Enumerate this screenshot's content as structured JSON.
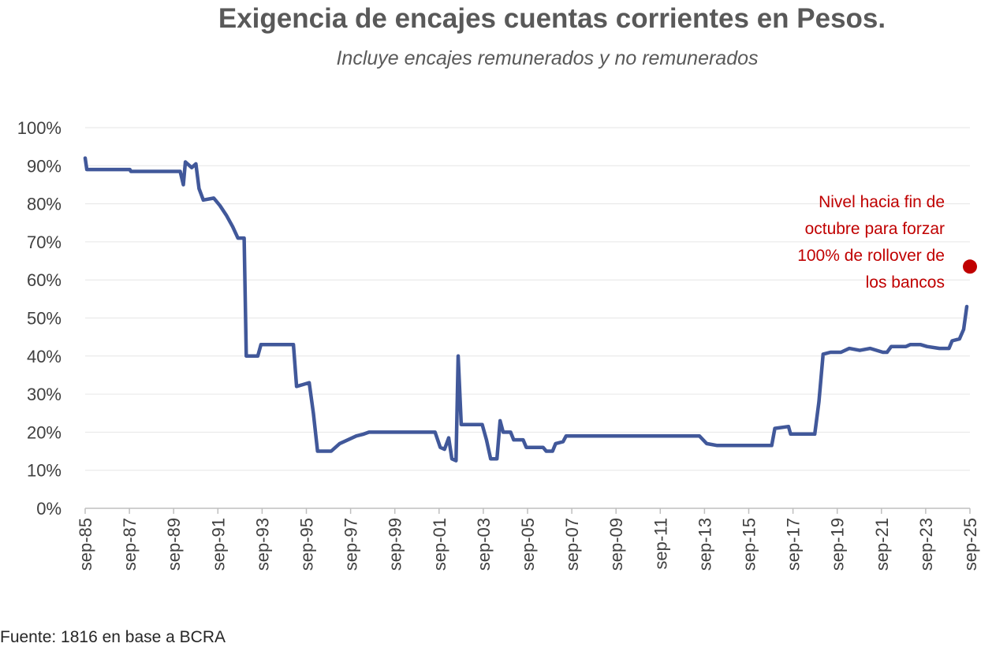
{
  "title": "Exigencia de encajes cuentas corrientes en Pesos.",
  "subtitle": "Incluye encajes remunerados y no remunerados",
  "source": "Fuente: 1816 en base a BCRA",
  "colors": {
    "line": "#41589a",
    "marker": "#c00000",
    "text": "#595959",
    "grid": "#e6e6e6"
  },
  "chart_data": {
    "type": "line",
    "title": "Exigencia de encajes cuentas corrientes en Pesos.",
    "subtitle": "Incluye encajes remunerados y no remunerados",
    "xlabel": "",
    "ylabel": "",
    "ylim": [
      0,
      100
    ],
    "yticks": [
      "0%",
      "10%",
      "20%",
      "30%",
      "40%",
      "50%",
      "60%",
      "70%",
      "80%",
      "90%",
      "100%"
    ],
    "xticks": [
      "sep-85",
      "sep-87",
      "sep-89",
      "sep-91",
      "sep-93",
      "sep-95",
      "sep-97",
      "sep-99",
      "sep-01",
      "sep-03",
      "sep-05",
      "sep-07",
      "sep-09",
      "sep-11",
      "sep-13",
      "sep-15",
      "sep-17",
      "sep-19",
      "sep-21",
      "sep-23",
      "sep-25"
    ],
    "grid": true,
    "series": [
      {
        "values": [
          [
            1985.67,
            92
          ],
          [
            1985.75,
            89
          ],
          [
            1987.8,
            89
          ],
          [
            1987.85,
            88.5
          ],
          [
            1990.2,
            88.5
          ],
          [
            1990.35,
            85
          ],
          [
            1990.45,
            91
          ],
          [
            1990.75,
            89.5
          ],
          [
            1990.95,
            90.5
          ],
          [
            1991.1,
            84
          ],
          [
            1991.3,
            81
          ],
          [
            1991.8,
            81.5
          ],
          [
            1992.1,
            79.5
          ],
          [
            1992.4,
            77
          ],
          [
            1992.7,
            74
          ],
          [
            1992.95,
            71
          ],
          [
            1993.25,
            71
          ],
          [
            1993.35,
            40
          ],
          [
            1993.9,
            40
          ],
          [
            1994.05,
            43
          ],
          [
            1995.6,
            43
          ],
          [
            1995.75,
            32
          ],
          [
            1996.35,
            33
          ],
          [
            1996.55,
            25
          ],
          [
            1996.75,
            15
          ],
          [
            1997.4,
            15
          ],
          [
            1997.8,
            17
          ],
          [
            1998.2,
            18
          ],
          [
            1998.6,
            19
          ],
          [
            1998.95,
            19.5
          ],
          [
            1999.2,
            20
          ],
          [
            2002.35,
            20
          ],
          [
            2002.6,
            16
          ],
          [
            2002.8,
            15.5
          ],
          [
            2003.0,
            18.5
          ],
          [
            2003.15,
            13
          ],
          [
            2003.35,
            12.5
          ],
          [
            2003.45,
            40
          ],
          [
            2003.6,
            22
          ],
          [
            2004.6,
            22
          ],
          [
            2004.8,
            18
          ],
          [
            2005.0,
            13
          ],
          [
            2005.3,
            13
          ],
          [
            2005.45,
            23
          ],
          [
            2005.6,
            20
          ],
          [
            2005.95,
            20
          ],
          [
            2006.1,
            18
          ],
          [
            2006.55,
            18
          ],
          [
            2006.7,
            16
          ],
          [
            2007.5,
            16
          ],
          [
            2007.65,
            15
          ],
          [
            2007.95,
            15
          ],
          [
            2008.1,
            17
          ],
          [
            2008.45,
            17.5
          ],
          [
            2008.6,
            19
          ],
          [
            2014.95,
            19
          ],
          [
            2015.3,
            17
          ],
          [
            2015.8,
            16.5
          ],
          [
            2016.4,
            16.5
          ],
          [
            2017.5,
            16.5
          ],
          [
            2018.4,
            16.5
          ],
          [
            2018.55,
            21
          ],
          [
            2019.2,
            21.5
          ],
          [
            2019.3,
            19.5
          ],
          [
            2020.45,
            19.5
          ],
          [
            2020.65,
            28
          ],
          [
            2020.85,
            40.5
          ],
          [
            2021.2,
            41
          ],
          [
            2021.7,
            41
          ],
          [
            2022.1,
            42
          ],
          [
            2022.6,
            41.5
          ],
          [
            2023.1,
            42
          ],
          [
            2023.7,
            41
          ],
          [
            2023.9,
            41
          ],
          [
            2024.1,
            42.5
          ],
          [
            2024.8,
            42.5
          ],
          [
            2025.0,
            43
          ],
          [
            2025.5,
            43
          ],
          [
            2025.8,
            42.5
          ],
          [
            2026.4,
            42
          ],
          [
            2026.85,
            42
          ],
          [
            2027.0,
            44
          ],
          [
            2027.35,
            44.5
          ],
          [
            2027.55,
            47
          ],
          [
            2027.7,
            53
          ]
        ]
      }
    ],
    "point": {
      "x": 2027.85,
      "y": 63.5
    },
    "annotation": [
      "Nivel hacia fin de",
      "octubre para forzar",
      "100% de rollover de",
      "los bancos"
    ]
  }
}
